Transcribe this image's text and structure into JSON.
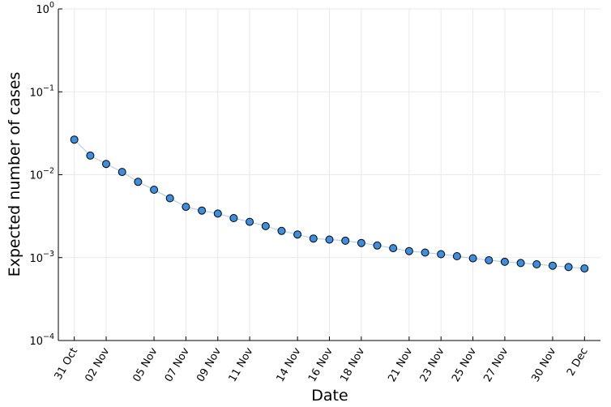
{
  "chart_data": {
    "type": "scatter",
    "xlabel": "Date",
    "ylabel": "Expected number of cases",
    "y_scale": "log",
    "ylim": [
      0.0001,
      1
    ],
    "y_ticks": [
      {
        "value": 0.0001,
        "base": "10",
        "exp": "−4"
      },
      {
        "value": 0.001,
        "base": "10",
        "exp": "−3"
      },
      {
        "value": 0.01,
        "base": "10",
        "exp": "−2"
      },
      {
        "value": 0.1,
        "base": "10",
        "exp": "−1"
      },
      {
        "value": 1,
        "base": "10",
        "exp": "0"
      }
    ],
    "x_range": [
      "2020-10-30",
      "2020-12-03"
    ],
    "x_ticks": [
      {
        "date": "2020-10-31",
        "label": "31 Oct"
      },
      {
        "date": "2020-11-02",
        "label": "02 Nov"
      },
      {
        "date": "2020-11-05",
        "label": "05 Nov"
      },
      {
        "date": "2020-11-07",
        "label": "07 Nov"
      },
      {
        "date": "2020-11-09",
        "label": "09 Nov"
      },
      {
        "date": "2020-11-11",
        "label": "11 Nov"
      },
      {
        "date": "2020-11-14",
        "label": "14 Nov"
      },
      {
        "date": "2020-11-16",
        "label": "16 Nov"
      },
      {
        "date": "2020-11-18",
        "label": "18 Nov"
      },
      {
        "date": "2020-11-21",
        "label": "21 Nov"
      },
      {
        "date": "2020-11-23",
        "label": "23 Nov"
      },
      {
        "date": "2020-11-25",
        "label": "25 Nov"
      },
      {
        "date": "2020-11-27",
        "label": "27 Nov"
      },
      {
        "date": "2020-11-30",
        "label": "30 Nov"
      },
      {
        "date": "2020-12-02",
        "label": "2 Dec"
      }
    ],
    "grid": true,
    "legend": "none",
    "marker_color": "#3b8fe0",
    "line_color": "#7fb8ec",
    "series": [
      {
        "x": [
          "2020-10-31",
          "2020-11-01",
          "2020-11-02",
          "2020-11-03",
          "2020-11-04",
          "2020-11-05",
          "2020-11-06",
          "2020-11-07",
          "2020-11-08",
          "2020-11-09",
          "2020-11-10",
          "2020-11-11",
          "2020-11-12",
          "2020-11-13",
          "2020-11-14",
          "2020-11-15",
          "2020-11-16",
          "2020-11-17",
          "2020-11-18",
          "2020-11-19",
          "2020-11-20",
          "2020-11-21",
          "2020-11-22",
          "2020-11-23",
          "2020-11-24",
          "2020-11-25",
          "2020-11-26",
          "2020-11-27",
          "2020-11-28",
          "2020-11-29",
          "2020-11-30",
          "2020-12-01",
          "2020-12-02"
        ],
        "y": [
          0.0265,
          0.017,
          0.0135,
          0.0108,
          0.0082,
          0.0066,
          0.0052,
          0.0041,
          0.0037,
          0.0034,
          0.003,
          0.0027,
          0.0024,
          0.0021,
          0.0019,
          0.0017,
          0.00165,
          0.0016,
          0.0015,
          0.0014,
          0.0013,
          0.0012,
          0.00115,
          0.0011,
          0.00104,
          0.00098,
          0.00093,
          0.00089,
          0.00086,
          0.00083,
          0.0008,
          0.00077,
          0.00074
        ]
      }
    ]
  }
}
